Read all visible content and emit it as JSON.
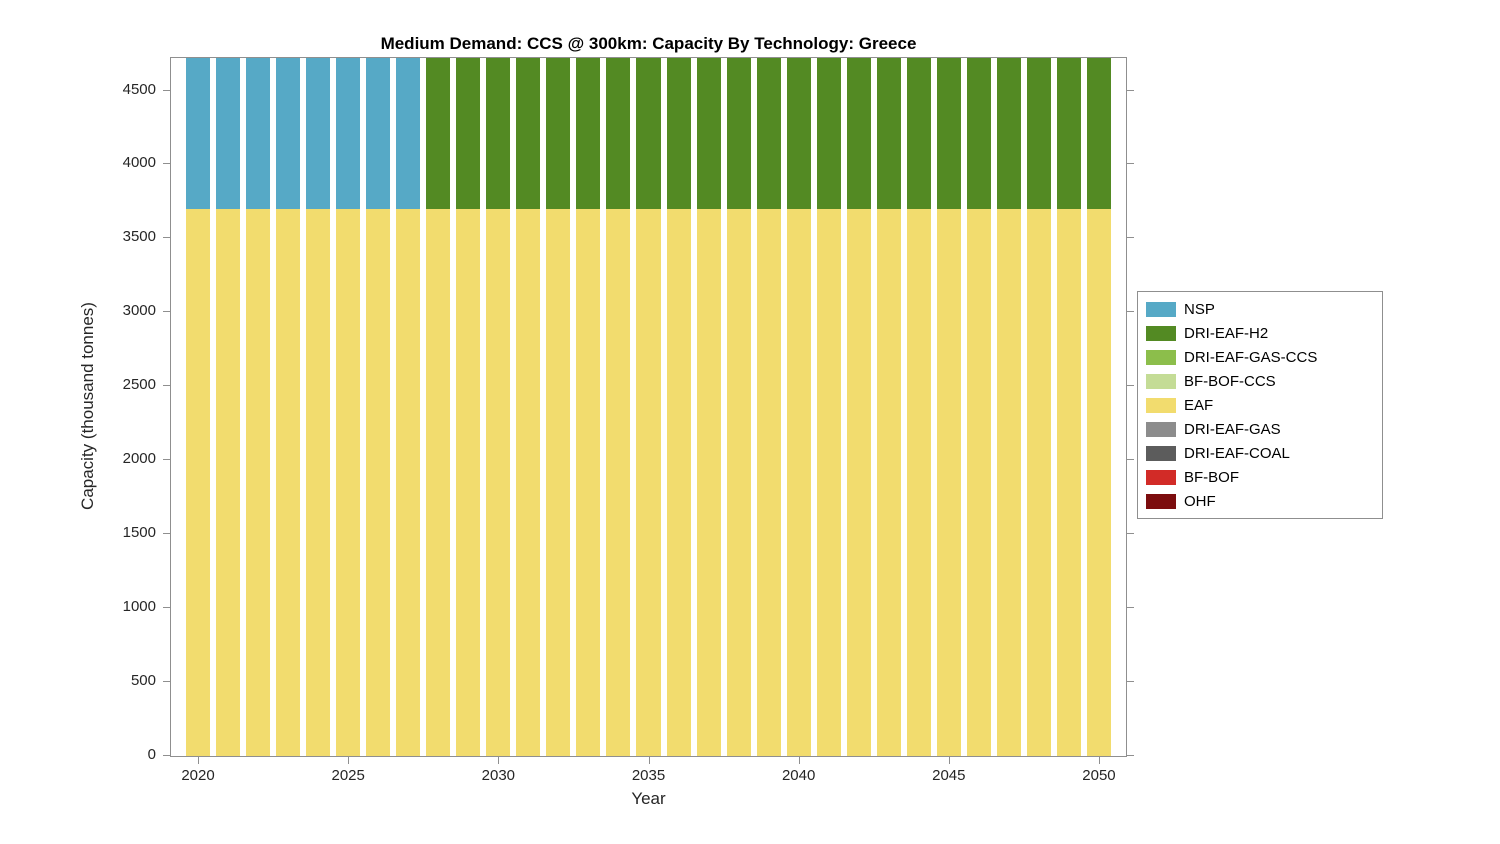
{
  "chart_data": {
    "type": "bar",
    "stacked": true,
    "title": "Medium Demand: CCS @ 300km: Capacity By Technology: Greece",
    "xlabel": "Year",
    "ylabel": "Capacity (thousand tonnes)",
    "x": [
      2020,
      2021,
      2022,
      2023,
      2024,
      2025,
      2026,
      2027,
      2028,
      2029,
      2030,
      2031,
      2032,
      2033,
      2034,
      2035,
      2036,
      2037,
      2038,
      2039,
      2040,
      2041,
      2042,
      2043,
      2044,
      2045,
      2046,
      2047,
      2048,
      2049,
      2050
    ],
    "xticks": [
      2020,
      2025,
      2030,
      2035,
      2040,
      2045,
      2050
    ],
    "yticks": [
      0,
      500,
      1000,
      1500,
      2000,
      2500,
      3000,
      3500,
      4000,
      4500
    ],
    "ylim": [
      0,
      4720
    ],
    "grid": false,
    "legend_position": "right-outside",
    "axis_color": "#8f8f8f",
    "text_color": "#262626",
    "series": [
      {
        "name": "NSP",
        "color": "#56A9C6",
        "values": [
          1100,
          1100,
          1100,
          1100,
          1100,
          1100,
          1100,
          1100,
          0,
          0,
          0,
          0,
          0,
          0,
          0,
          0,
          0,
          0,
          0,
          0,
          0,
          0,
          0,
          0,
          0,
          0,
          0,
          0,
          0,
          0,
          0
        ]
      },
      {
        "name": "DRI-EAF-H2",
        "color": "#538A23",
        "values": [
          0,
          0,
          0,
          0,
          0,
          0,
          0,
          0,
          1100,
          1100,
          1100,
          1100,
          1100,
          1100,
          1100,
          1100,
          1100,
          1100,
          1100,
          1100,
          1100,
          1100,
          1100,
          1100,
          1100,
          1100,
          1100,
          1100,
          1100,
          1100,
          1100
        ]
      },
      {
        "name": "DRI-EAF-GAS-CCS",
        "color": "#8CBE4B",
        "values": [
          0,
          0,
          0,
          0,
          0,
          0,
          0,
          0,
          0,
          0,
          0,
          0,
          0,
          0,
          0,
          0,
          0,
          0,
          0,
          0,
          0,
          0,
          0,
          0,
          0,
          0,
          0,
          0,
          0,
          0,
          0
        ]
      },
      {
        "name": "BF-BOF-CCS",
        "color": "#C4DC96",
        "values": [
          0,
          0,
          0,
          0,
          0,
          0,
          0,
          0,
          0,
          0,
          0,
          0,
          0,
          0,
          0,
          0,
          0,
          0,
          0,
          0,
          0,
          0,
          0,
          0,
          0,
          0,
          0,
          0,
          0,
          0,
          0
        ]
      },
      {
        "name": "EAF",
        "color": "#F2DC6E",
        "values": [
          3700,
          3700,
          3700,
          3700,
          3700,
          3700,
          3700,
          3700,
          3700,
          3700,
          3700,
          3700,
          3700,
          3700,
          3700,
          3700,
          3700,
          3700,
          3700,
          3700,
          3700,
          3700,
          3700,
          3700,
          3700,
          3700,
          3700,
          3700,
          3700,
          3700,
          3700
        ]
      },
      {
        "name": "DRI-EAF-GAS",
        "color": "#8C8C8C",
        "values": [
          0,
          0,
          0,
          0,
          0,
          0,
          0,
          0,
          0,
          0,
          0,
          0,
          0,
          0,
          0,
          0,
          0,
          0,
          0,
          0,
          0,
          0,
          0,
          0,
          0,
          0,
          0,
          0,
          0,
          0,
          0
        ]
      },
      {
        "name": "DRI-EAF-COAL",
        "color": "#5C5C5C",
        "values": [
          0,
          0,
          0,
          0,
          0,
          0,
          0,
          0,
          0,
          0,
          0,
          0,
          0,
          0,
          0,
          0,
          0,
          0,
          0,
          0,
          0,
          0,
          0,
          0,
          0,
          0,
          0,
          0,
          0,
          0,
          0
        ]
      },
      {
        "name": "BF-BOF",
        "color": "#D22B27",
        "values": [
          0,
          0,
          0,
          0,
          0,
          0,
          0,
          0,
          0,
          0,
          0,
          0,
          0,
          0,
          0,
          0,
          0,
          0,
          0,
          0,
          0,
          0,
          0,
          0,
          0,
          0,
          0,
          0,
          0,
          0,
          0
        ]
      },
      {
        "name": "OHF",
        "color": "#7C0D0E",
        "values": [
          0,
          0,
          0,
          0,
          0,
          0,
          0,
          0,
          0,
          0,
          0,
          0,
          0,
          0,
          0,
          0,
          0,
          0,
          0,
          0,
          0,
          0,
          0,
          0,
          0,
          0,
          0,
          0,
          0,
          0,
          0
        ]
      }
    ]
  }
}
